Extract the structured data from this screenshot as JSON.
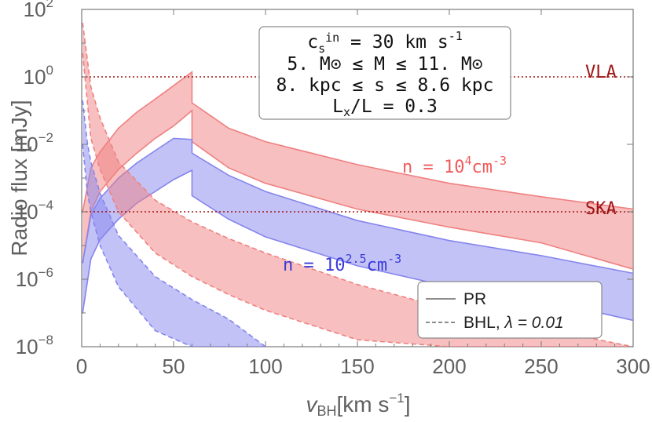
{
  "chart_data": {
    "type": "area",
    "xlabel_base": "v",
    "xlabel_sub": "BH",
    "xlabel_unit": "[km s",
    "xlabel_unit_exp": "−1",
    "xlabel_unit_close": "]",
    "ylabel": "Radio flux  [mJy]",
    "xlim": [
      0,
      300
    ],
    "ylim": [
      1e-08,
      100
    ],
    "yscale": "log",
    "x_ticks": [
      "0",
      "50",
      "100",
      "150",
      "200",
      "250",
      "300"
    ],
    "y_ticks": [
      {
        "base": "10",
        "exp": "2"
      },
      {
        "base": "10",
        "exp": "0"
      },
      {
        "base": "10",
        "exp": "−2"
      },
      {
        "base": "10",
        "exp": "−4"
      },
      {
        "base": "10",
        "exp": "−6"
      },
      {
        "base": "10",
        "exp": "−8"
      }
    ],
    "thresholds": [
      {
        "label": "VLA",
        "value": 1.0,
        "color": "#a01515"
      },
      {
        "label": "SKA",
        "value": 0.0001,
        "color": "#a01515"
      }
    ],
    "info_box": {
      "line1": "c",
      "line1_sub": "s",
      "line1_sup": "in",
      "line1_rest": " = 30 km s",
      "line1_rest_sup": "-1",
      "line2": "5. M⊙ ≤ M ≤ 11. M⊙",
      "line3": "8. kpc ≤ s ≤ 8.6 kpc",
      "line4": "L",
      "line4_sub": "x",
      "line4_rest": "/L = 0.3"
    },
    "band_labels": [
      {
        "text": "n = 10",
        "sup": "4",
        "unit": "cm",
        "unit_sup": "-3",
        "color": "#f25a5a"
      },
      {
        "text": "n = 10",
        "sup": "2.5",
        "unit": "cm",
        "unit_sup": "-3",
        "color": "#3a3ad8"
      }
    ],
    "legend": {
      "position": "bottom-right",
      "entries": [
        {
          "label": "PR",
          "style": "solid"
        },
        {
          "label": "BHL, ",
          "lambda": "λ = 0.01",
          "style": "dashed"
        }
      ]
    },
    "series": [
      {
        "name": "PR, n = 10^4 cm^-3",
        "model": "PR",
        "color": "#f08080",
        "x": [
          0.5,
          5,
          10,
          20,
          30,
          40,
          50,
          60,
          60,
          80,
          100,
          150,
          200,
          250,
          300
        ],
        "upper": [
          0.0001,
          0.002,
          0.006,
          0.03,
          0.09,
          0.22,
          0.55,
          1.4,
          0.17,
          0.03,
          0.012,
          0.0025,
          0.0007,
          0.00028,
          0.00012
        ],
        "lower": [
          3e-06,
          0.0001,
          0.0004,
          0.0018,
          0.0055,
          0.015,
          0.035,
          0.1,
          0.012,
          0.002,
          0.0007,
          0.00012,
          3.5e-05,
          1.2e-05,
          2e-06
        ]
      },
      {
        "name": "PR, n = 10^2.5 cm^-3",
        "model": "PR",
        "color": "#8585ee",
        "x": [
          0.5,
          5,
          10,
          20,
          30,
          40,
          50,
          60,
          60,
          80,
          100,
          150,
          200,
          250,
          300
        ],
        "upper": [
          3e-06,
          8e-05,
          0.00025,
          0.001,
          0.0028,
          0.0065,
          0.015,
          0.014,
          0.0055,
          0.0012,
          0.0004,
          5.5e-05,
          1.4e-05,
          5e-06,
          1.5e-06
        ],
        "lower": [
          1e-07,
          4e-06,
          1.5e-05,
          6e-05,
          0.00018,
          0.0004,
          0.0009,
          0.0017,
          0.0003,
          6e-05,
          1.8e-05,
          2.5e-06,
          6e-07,
          2.5e-07,
          6e-08
        ]
      },
      {
        "name": "BHL, n = 10^4 cm^-3",
        "model": "BHL",
        "color": "#f08080",
        "x": [
          0.5,
          5,
          10,
          20,
          40,
          60,
          80,
          100,
          150,
          200,
          250,
          300
        ],
        "upper": [
          40,
          0.5,
          0.06,
          0.003,
          0.00022,
          5e-05,
          1.6e-05,
          6e-06,
          7e-07,
          1.3e-07,
          3.5e-08,
          1e-08
        ],
        "lower": [
          5,
          0.015,
          0.0018,
          0.0001,
          6e-06,
          1.2e-06,
          3.5e-07,
          1.2e-07,
          1.6e-08,
          1e-08,
          1e-08,
          1e-08
        ]
      },
      {
        "name": "BHL, n = 10^2.5 cm^-3",
        "model": "BHL",
        "color": "#8585ee",
        "x": [
          0.5,
          3,
          5,
          10,
          20,
          40,
          60,
          80,
          100
        ],
        "upper": [
          0.2,
          0.012,
          0.003,
          0.00035,
          2e-05,
          1.2e-06,
          2.5e-07,
          6.5e-08,
          1e-08
        ],
        "lower": [
          0.01,
          0.0004,
          0.0001,
          1e-05,
          6e-07,
          3e-08,
          1e-08,
          1e-08,
          1e-08
        ]
      }
    ]
  }
}
